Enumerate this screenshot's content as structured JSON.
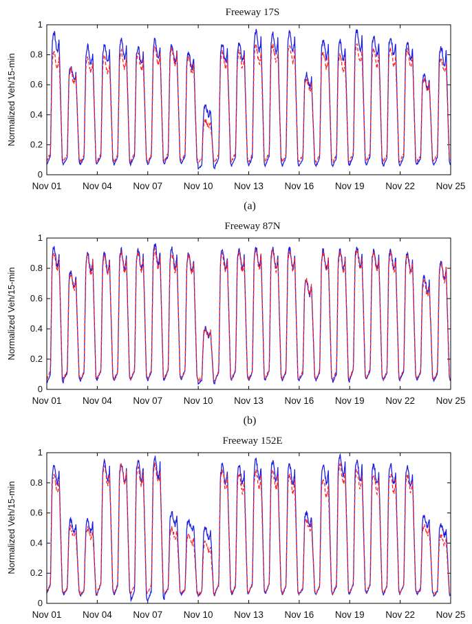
{
  "chart_data": [
    {
      "type": "line",
      "title": "Freeway 17S",
      "caption": "(a)",
      "ylabel": "Normalized Veh/15-min",
      "xlabel": "",
      "ylim": [
        0,
        1
      ],
      "yticks": [
        "0",
        "0.2",
        "0.4",
        "0.6",
        "0.8",
        "1"
      ],
      "xticks": [
        "Nov 01",
        "Nov 04",
        "Nov 07",
        "Nov 10",
        "Nov 13",
        "Nov 16",
        "Nov 19",
        "Nov 22",
        "Nov 25"
      ],
      "x": [
        "Nov 01",
        "Nov 02",
        "Nov 03",
        "Nov 04",
        "Nov 05",
        "Nov 06",
        "Nov 07",
        "Nov 08",
        "Nov 09",
        "Nov 10",
        "Nov 11",
        "Nov 12",
        "Nov 13",
        "Nov 14",
        "Nov 15",
        "Nov 16",
        "Nov 17",
        "Nov 18",
        "Nov 19",
        "Nov 20",
        "Nov 21",
        "Nov 22",
        "Nov 23",
        "Nov 24"
      ],
      "series": [
        {
          "color": "#1f1fe0",
          "style": "solid",
          "daily_peak": [
            0.95,
            0.72,
            0.86,
            0.86,
            0.9,
            0.85,
            0.9,
            0.87,
            0.82,
            0.46,
            0.87,
            0.88,
            0.96,
            0.94,
            0.95,
            0.67,
            0.9,
            0.89,
            0.96,
            0.92,
            0.92,
            0.88,
            0.66,
            0.85
          ],
          "daily_min": [
            0.05,
            0.06,
            0.05,
            0.06,
            0.05,
            0.06,
            0.05,
            0.06,
            0.06,
            0.03,
            0.04,
            0.05,
            0.04,
            0.05,
            0.04,
            0.05,
            0.04,
            0.04,
            0.05,
            0.05,
            0.04,
            0.05,
            0.06,
            0.05
          ]
        },
        {
          "color": "#ff2020",
          "style": "dashed",
          "daily_peak": [
            0.82,
            0.7,
            0.78,
            0.78,
            0.82,
            0.8,
            0.85,
            0.84,
            0.78,
            0.36,
            0.82,
            0.82,
            0.86,
            0.86,
            0.86,
            0.64,
            0.82,
            0.8,
            0.86,
            0.83,
            0.84,
            0.83,
            0.64,
            0.78
          ],
          "daily_min": [
            0.08,
            0.08,
            0.07,
            0.08,
            0.07,
            0.08,
            0.07,
            0.08,
            0.08,
            0.08,
            0.07,
            0.08,
            0.07,
            0.08,
            0.07,
            0.08,
            0.07,
            0.07,
            0.08,
            0.08,
            0.07,
            0.08,
            0.08,
            0.08
          ]
        }
      ]
    },
    {
      "type": "line",
      "title": "Freeway 87N",
      "caption": "(b)",
      "ylabel": "Normalized Veh/15-min",
      "xlabel": "",
      "ylim": [
        0,
        1
      ],
      "yticks": [
        "0",
        "0.2",
        "0.4",
        "0.6",
        "0.8",
        "1"
      ],
      "xticks": [
        "Nov 01",
        "Nov 04",
        "Nov 07",
        "Nov 10",
        "Nov 13",
        "Nov 16",
        "Nov 19",
        "Nov 22",
        "Nov 25"
      ],
      "x": [
        "Nov 01",
        "Nov 02",
        "Nov 03",
        "Nov 04",
        "Nov 05",
        "Nov 06",
        "Nov 07",
        "Nov 08",
        "Nov 09",
        "Nov 10",
        "Nov 11",
        "Nov 12",
        "Nov 13",
        "Nov 14",
        "Nov 15",
        "Nov 16",
        "Nov 17",
        "Nov 18",
        "Nov 19",
        "Nov 20",
        "Nov 21",
        "Nov 22",
        "Nov 23",
        "Nov 24"
      ],
      "series": [
        {
          "color": "#1f1fe0",
          "style": "solid",
          "daily_peak": [
            0.94,
            0.78,
            0.9,
            0.9,
            0.92,
            0.92,
            0.96,
            0.93,
            0.9,
            0.4,
            0.92,
            0.92,
            0.94,
            0.93,
            0.93,
            0.72,
            0.92,
            0.92,
            0.94,
            0.92,
            0.92,
            0.9,
            0.74,
            0.84
          ],
          "daily_min": [
            0.02,
            0.05,
            0.04,
            0.05,
            0.04,
            0.05,
            0.04,
            0.05,
            0.05,
            0.03,
            0.04,
            0.05,
            0.04,
            0.05,
            0.04,
            0.05,
            0.04,
            0.03,
            0.05,
            0.05,
            0.04,
            0.05,
            0.05,
            0.04
          ]
        },
        {
          "color": "#ff2020",
          "style": "dashed",
          "daily_peak": [
            0.9,
            0.76,
            0.88,
            0.88,
            0.9,
            0.9,
            0.92,
            0.9,
            0.88,
            0.4,
            0.9,
            0.9,
            0.92,
            0.91,
            0.91,
            0.72,
            0.9,
            0.9,
            0.92,
            0.9,
            0.9,
            0.88,
            0.72,
            0.83
          ],
          "daily_min": [
            0.05,
            0.06,
            0.05,
            0.06,
            0.05,
            0.06,
            0.05,
            0.06,
            0.06,
            0.05,
            0.05,
            0.06,
            0.05,
            0.06,
            0.05,
            0.06,
            0.05,
            0.05,
            0.06,
            0.06,
            0.05,
            0.06,
            0.06,
            0.05
          ]
        }
      ]
    },
    {
      "type": "line",
      "title": "Freeway 152E",
      "caption": "",
      "ylabel": "Normalized Veh/15-min",
      "xlabel": "",
      "ylim": [
        0,
        1
      ],
      "yticks": [
        "0",
        "0.2",
        "0.4",
        "0.6",
        "0.8",
        "1"
      ],
      "xticks": [
        "Nov 01",
        "Nov 04",
        "Nov 07",
        "Nov 10",
        "Nov 13",
        "Nov 16",
        "Nov 19",
        "Nov 22",
        "Nov 25"
      ],
      "x": [
        "Nov 01",
        "Nov 02",
        "Nov 03",
        "Nov 04",
        "Nov 05",
        "Nov 06",
        "Nov 07",
        "Nov 08",
        "Nov 09",
        "Nov 10",
        "Nov 11",
        "Nov 12",
        "Nov 13",
        "Nov 14",
        "Nov 15",
        "Nov 16",
        "Nov 17",
        "Nov 18",
        "Nov 19",
        "Nov 20",
        "Nov 21",
        "Nov 22",
        "Nov 23",
        "Nov 24"
      ],
      "series": [
        {
          "color": "#1f1fe0",
          "style": "solid",
          "daily_peak": [
            0.92,
            0.55,
            0.55,
            0.94,
            0.93,
            0.95,
            0.97,
            0.6,
            0.55,
            0.5,
            0.92,
            0.92,
            0.95,
            0.94,
            0.92,
            0.6,
            0.92,
            0.98,
            0.95,
            0.92,
            0.92,
            0.9,
            0.58,
            0.52
          ],
          "daily_min": [
            0.05,
            0.05,
            0.04,
            0.05,
            0.04,
            0.0,
            0.0,
            0.05,
            0.05,
            0.04,
            0.05,
            0.04,
            0.05,
            0.05,
            0.04,
            0.05,
            0.04,
            0.04,
            0.05,
            0.05,
            0.04,
            0.05,
            0.05,
            0.04
          ]
        },
        {
          "color": "#ff2020",
          "style": "dashed",
          "daily_peak": [
            0.85,
            0.5,
            0.5,
            0.9,
            0.92,
            0.9,
            0.92,
            0.5,
            0.45,
            0.4,
            0.88,
            0.85,
            0.88,
            0.88,
            0.85,
            0.55,
            0.82,
            0.92,
            0.88,
            0.85,
            0.85,
            0.85,
            0.52,
            0.45
          ],
          "daily_min": [
            0.06,
            0.06,
            0.05,
            0.06,
            0.05,
            0.05,
            0.05,
            0.06,
            0.06,
            0.05,
            0.06,
            0.05,
            0.06,
            0.06,
            0.05,
            0.06,
            0.05,
            0.05,
            0.06,
            0.06,
            0.05,
            0.06,
            0.06,
            0.05
          ]
        }
      ]
    }
  ]
}
